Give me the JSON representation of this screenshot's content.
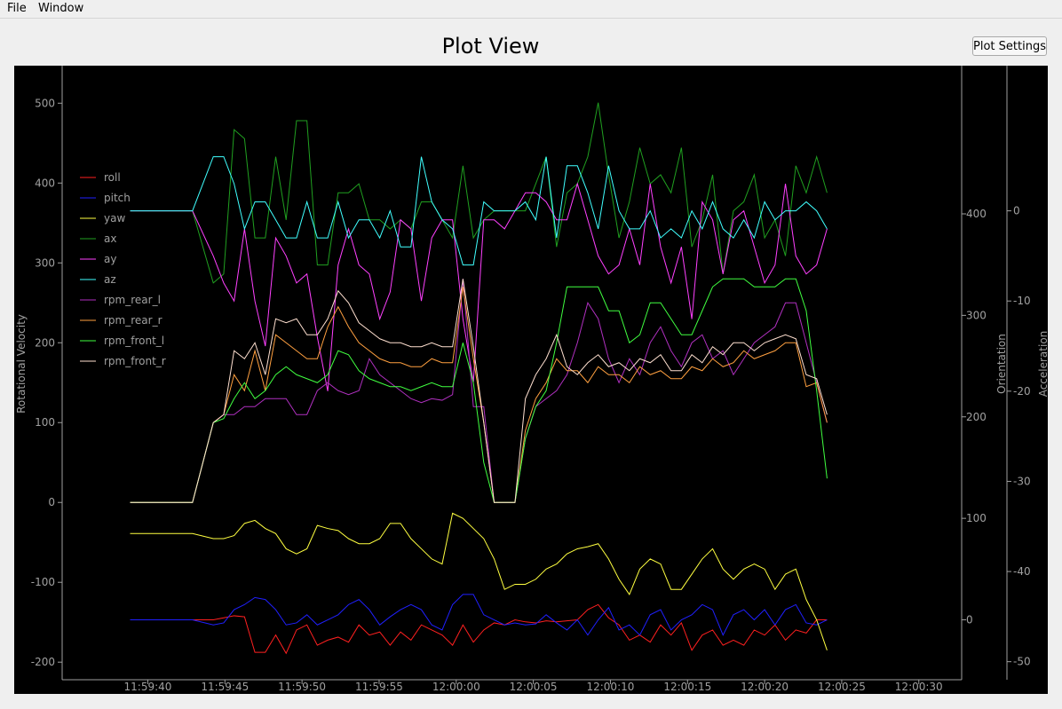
{
  "menu": {
    "file": "File",
    "window": "Window"
  },
  "page": {
    "title": "Plot View",
    "settings_button": "Plot Settings"
  },
  "colors": {
    "background": "#000000",
    "axis": "#a0a0a0",
    "roll": "#ff2020",
    "pitch": "#2020ff",
    "yaw": "#ffff40",
    "ax": "#20a020",
    "ay": "#ff40ff",
    "az": "#40ffff",
    "rpm_rear_l": "#b030c0",
    "rpm_rear_r": "#ffa040",
    "rpm_front_l": "#40ff40",
    "rpm_front_r": "#ffe0d0"
  },
  "chart_data": {
    "type": "line",
    "xlabel": "",
    "x_ticks": [
      "11:59:40",
      "11:59:45",
      "11:59:50",
      "11:59:55",
      "12:00:00",
      "12:00:05",
      "12:00:10",
      "12:00:15",
      "12:00:20",
      "12:00:25",
      "12:00:30"
    ],
    "t_domain": [
      -42,
      31.5
    ],
    "x": [
      -37,
      -35,
      -33,
      -31,
      -29,
      -28,
      -27,
      -26,
      -25,
      -24,
      -23,
      -22,
      -21,
      -20,
      -19,
      -18,
      -17,
      -16,
      -15,
      -14,
      -13,
      -12,
      -11,
      -10,
      -9,
      -8,
      -7,
      -6,
      -5,
      -4,
      -3,
      -2,
      -1,
      0,
      1,
      2,
      3,
      4,
      5,
      6,
      7,
      8,
      9,
      10,
      11,
      12,
      13,
      14,
      15,
      16,
      17,
      18,
      19,
      20,
      21,
      22,
      23,
      24,
      25,
      26,
      27,
      28,
      29,
      30
    ],
    "axes": {
      "rotational_velocity": {
        "label": "Rotational Velocity",
        "ylim": [
          -222,
          547
        ],
        "ticks": [
          -200,
          -100,
          0,
          100,
          200,
          300,
          400,
          500
        ]
      },
      "orientation": {
        "label": "Orientation",
        "ylim": [
          -59,
          546
        ],
        "ticks": [
          0,
          100,
          200,
          300,
          400
        ]
      },
      "acceleration": {
        "label": "Acceleration",
        "ylim": [
          -52.0,
          16.1
        ],
        "ticks": [
          -50,
          -40,
          -30,
          -20,
          -10,
          0
        ]
      }
    },
    "legend_position": "top-left",
    "series": [
      {
        "name": "roll",
        "axis": "orientation",
        "color_key": "roll",
        "values": [
          0,
          0,
          0,
          0,
          0,
          2,
          4,
          3,
          -32,
          -32,
          -15,
          -33,
          -10,
          -5,
          -25,
          -20,
          -17,
          -22,
          -5,
          -15,
          -12,
          -25,
          -12,
          -20,
          -5,
          -10,
          -15,
          -25,
          -5,
          -22,
          -10,
          -3,
          -5,
          0,
          -2,
          -3,
          -1,
          -2,
          -1,
          0,
          10,
          15,
          2,
          -5,
          -20,
          -15,
          -22,
          -5,
          -15,
          -3,
          -30,
          -15,
          -10,
          -25,
          -20,
          -25,
          -10,
          -15,
          -5,
          -20,
          -10,
          -13,
          0,
          0
        ]
      },
      {
        "name": "pitch",
        "axis": "orientation",
        "color_key": "pitch",
        "values": [
          0,
          0,
          0,
          0,
          -5,
          -3,
          10,
          15,
          22,
          20,
          10,
          -5,
          -3,
          5,
          -5,
          0,
          5,
          15,
          20,
          10,
          -5,
          3,
          10,
          15,
          10,
          -5,
          -10,
          15,
          25,
          25,
          5,
          0,
          -5,
          -3,
          -5,
          -4,
          5,
          -3,
          -10,
          0,
          -15,
          0,
          12,
          -10,
          -5,
          -15,
          5,
          10,
          -10,
          0,
          5,
          15,
          10,
          -15,
          5,
          10,
          0,
          10,
          -5,
          10,
          15,
          -3,
          -5,
          0
        ]
      },
      {
        "name": "yaw",
        "axis": "orientation",
        "color_key": "yaw",
        "values": [
          85,
          85,
          85,
          85,
          80,
          80,
          83,
          95,
          98,
          90,
          85,
          70,
          65,
          70,
          93,
          90,
          88,
          80,
          75,
          75,
          80,
          95,
          95,
          80,
          70,
          60,
          55,
          105,
          100,
          90,
          80,
          60,
          30,
          35,
          35,
          40,
          50,
          55,
          65,
          70,
          72,
          75,
          60,
          40,
          25,
          50,
          60,
          55,
          30,
          30,
          45,
          60,
          70,
          50,
          40,
          50,
          55,
          50,
          30,
          45,
          50,
          20,
          0,
          -30
        ]
      },
      {
        "name": "ax",
        "axis": "acceleration",
        "color_key": "ax",
        "values": [
          0,
          0,
          0,
          0,
          -8,
          -7,
          9,
          8,
          -3,
          -3,
          6,
          -1,
          10,
          10,
          -6,
          -6,
          2,
          2,
          3,
          -1,
          -1,
          -2,
          -1,
          -2,
          1,
          1,
          -1,
          -3,
          5,
          -3,
          -1,
          0,
          0,
          0,
          0,
          3,
          6,
          -4,
          2,
          3,
          6,
          12,
          4,
          -3,
          1,
          7,
          3,
          4,
          2,
          7,
          -4,
          -1,
          4,
          -7,
          0,
          1,
          4,
          -3,
          -1,
          -5,
          5,
          2,
          6,
          2
        ]
      },
      {
        "name": "ay",
        "axis": "acceleration",
        "color_key": "ay",
        "values": [
          0,
          0,
          0,
          0,
          -5,
          -8,
          -10,
          -2,
          -10,
          -15,
          -3,
          -5,
          -8,
          -7,
          -14,
          -20,
          -6,
          -2,
          -6,
          -7,
          -12,
          -9,
          -1,
          -2,
          -10,
          -3,
          -1,
          -1,
          -12,
          -19,
          -1,
          -1,
          -2,
          0,
          2,
          2,
          1,
          -1,
          -1,
          3,
          -1,
          -5,
          -7,
          -6,
          -2,
          -6,
          3,
          -4,
          -8,
          -4,
          -12,
          1,
          -1,
          -7,
          -1,
          0,
          -4,
          -8,
          -6,
          3,
          -5,
          -7,
          -6,
          -2
        ]
      },
      {
        "name": "az",
        "axis": "acceleration",
        "color_key": "az",
        "values": [
          0,
          0,
          0,
          0,
          6,
          6,
          3,
          -2,
          1,
          1,
          -1,
          -3,
          -3,
          1,
          -3,
          -3,
          1,
          -3,
          -1,
          -1,
          -3,
          0,
          -4,
          -4,
          6,
          1,
          -1,
          -2,
          -6,
          -6,
          1,
          0,
          0,
          0,
          1,
          -1,
          6,
          -3,
          5,
          5,
          2,
          -2,
          5,
          0,
          -2,
          -2,
          0,
          -3,
          -2,
          -3,
          0,
          -2,
          1,
          -2,
          -3,
          -1,
          -3,
          1,
          -1,
          0,
          0,
          1,
          0,
          -2
        ]
      },
      {
        "name": "rpm_rear_l",
        "axis": "rotational_velocity",
        "color_key": "rpm_rear_l",
        "values": [
          0,
          0,
          0,
          0,
          100,
          110,
          110,
          120,
          120,
          130,
          130,
          130,
          110,
          110,
          140,
          150,
          140,
          135,
          140,
          180,
          160,
          150,
          140,
          130,
          125,
          130,
          128,
          135,
          280,
          120,
          120,
          0,
          0,
          0,
          80,
          120,
          130,
          140,
          160,
          200,
          250,
          230,
          180,
          150,
          180,
          160,
          200,
          220,
          190,
          170,
          200,
          210,
          180,
          190,
          160,
          180,
          200,
          210,
          220,
          250,
          250,
          200,
          150,
          100
        ]
      },
      {
        "name": "rpm_rear_r",
        "axis": "rotational_velocity",
        "color_key": "rpm_rear_r",
        "values": [
          0,
          0,
          0,
          0,
          100,
          110,
          160,
          140,
          190,
          140,
          210,
          200,
          190,
          180,
          180,
          220,
          245,
          220,
          200,
          190,
          180,
          175,
          175,
          170,
          170,
          180,
          175,
          175,
          270,
          180,
          100,
          0,
          0,
          0,
          90,
          130,
          150,
          180,
          165,
          165,
          150,
          170,
          160,
          160,
          150,
          170,
          160,
          165,
          155,
          155,
          170,
          165,
          180,
          170,
          175,
          190,
          180,
          185,
          190,
          200,
          200,
          145,
          150,
          100
        ]
      },
      {
        "name": "rpm_front_l",
        "axis": "rotational_velocity",
        "color_key": "rpm_front_l",
        "values": [
          0,
          0,
          0,
          0,
          100,
          105,
          130,
          150,
          130,
          140,
          160,
          170,
          160,
          155,
          150,
          160,
          190,
          185,
          165,
          155,
          150,
          145,
          145,
          140,
          145,
          150,
          145,
          145,
          200,
          150,
          50,
          0,
          0,
          0,
          80,
          120,
          140,
          200,
          270,
          270,
          270,
          270,
          240,
          240,
          200,
          210,
          250,
          250,
          230,
          210,
          210,
          240,
          270,
          280,
          280,
          280,
          270,
          270,
          270,
          280,
          280,
          240,
          140,
          30
        ]
      },
      {
        "name": "rpm_front_r",
        "axis": "rotational_velocity",
        "color_key": "rpm_front_r",
        "values": [
          0,
          0,
          0,
          0,
          100,
          110,
          190,
          180,
          200,
          160,
          230,
          225,
          230,
          210,
          210,
          230,
          265,
          250,
          225,
          215,
          205,
          200,
          200,
          195,
          195,
          200,
          195,
          195,
          280,
          195,
          100,
          0,
          0,
          0,
          130,
          160,
          180,
          210,
          170,
          160,
          175,
          185,
          170,
          175,
          165,
          180,
          175,
          185,
          165,
          165,
          185,
          175,
          195,
          185,
          200,
          200,
          190,
          200,
          205,
          210,
          205,
          160,
          155,
          110
        ]
      }
    ]
  }
}
